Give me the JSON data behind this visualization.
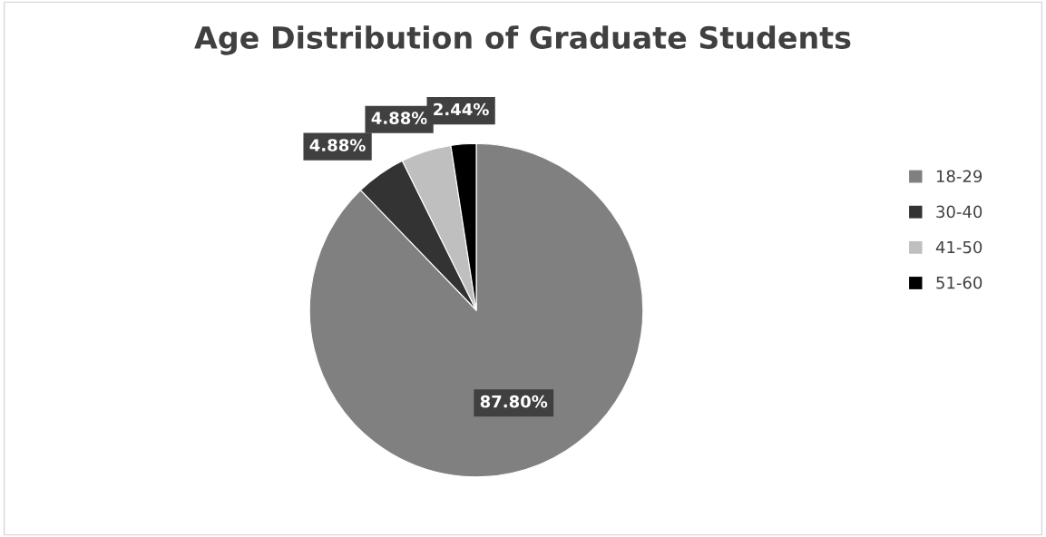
{
  "chart_data": {
    "type": "pie",
    "title": "Age Distribution of Graduate Students",
    "categories": [
      "18-29",
      "30-40",
      "41-50",
      "51-60"
    ],
    "values": [
      87.8,
      4.88,
      4.88,
      2.44
    ],
    "value_labels": [
      "87.80%",
      "4.88%",
      "4.88%",
      "2.44%"
    ],
    "colors": [
      "#808080",
      "#333333",
      "#bfbfbf",
      "#000000"
    ],
    "legend": "right"
  }
}
